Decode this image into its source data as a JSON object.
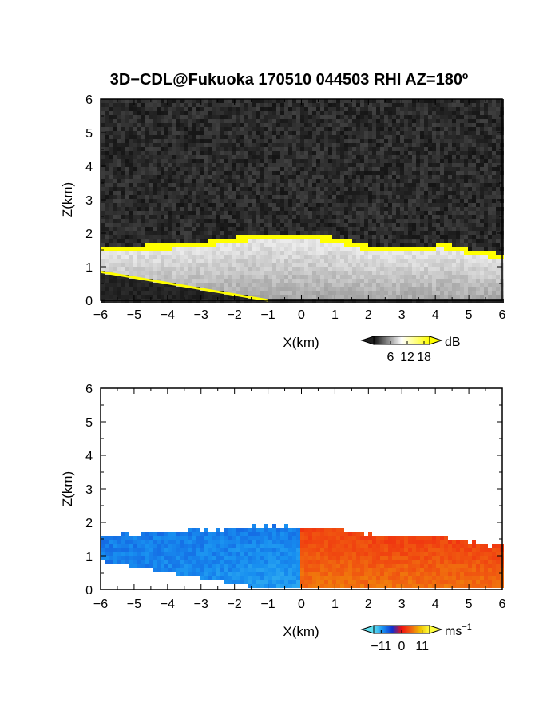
{
  "title": "3D−CDL@Fukuoka 170510 044503 RHI AZ=180º",
  "chart_data": [
    {
      "type": "heatmap",
      "quantity": "backscatter",
      "xlabel": "X(km)",
      "ylabel": "Z(km)",
      "xlim": [
        -6,
        6
      ],
      "ylim": [
        0,
        6
      ],
      "xticks": [
        "−6",
        "−5",
        "−4",
        "−3",
        "−2",
        "−1",
        "0",
        "1",
        "2",
        "3",
        "4",
        "5",
        "6"
      ],
      "yticks": [
        "0",
        "1",
        "2",
        "3",
        "4",
        "5",
        "6"
      ],
      "colorbar": {
        "unit": "dB",
        "ticks": [
          "6",
          "12",
          "18"
        ],
        "tick_values": [
          6,
          12,
          18
        ],
        "range": [
          0,
          20
        ],
        "colors": [
          "#101010",
          "#ffffff",
          "#ffff00"
        ]
      },
      "layer_top_km": [
        [
          -6,
          1.55
        ],
        [
          -5,
          1.6
        ],
        [
          -4,
          1.65
        ],
        [
          -3,
          1.7
        ],
        [
          -2,
          1.85
        ],
        [
          -1,
          1.95
        ],
        [
          0,
          1.95
        ],
        [
          1,
          1.85
        ],
        [
          2,
          1.6
        ],
        [
          3,
          1.55
        ],
        [
          4,
          1.55
        ],
        [
          4.1,
          1.7
        ],
        [
          5,
          1.5
        ],
        [
          6,
          1.35
        ]
      ],
      "ground_line_km": [
        [
          -6,
          0.85
        ],
        [
          -1,
          0.0
        ]
      ],
      "noise_color": "#303030",
      "grid": false
    },
    {
      "type": "heatmap",
      "quantity": "radial velocity",
      "xlabel": "X(km)",
      "ylabel": "Z(km)",
      "xlim": [
        -6,
        6
      ],
      "ylim": [
        0,
        6
      ],
      "xticks": [
        "−6",
        "−5",
        "−4",
        "−3",
        "−2",
        "−1",
        "0",
        "1",
        "2",
        "3",
        "4",
        "5",
        "6"
      ],
      "yticks": [
        "0",
        "1",
        "2",
        "3",
        "4",
        "5",
        "6"
      ],
      "colorbar": {
        "unit": "ms",
        "unit_sup": "−1",
        "ticks": [
          "−11",
          "0",
          "11"
        ],
        "tick_values": [
          -11,
          0,
          11
        ],
        "range": [
          -15,
          15
        ],
        "colors": [
          "#5ee0f0",
          "#1890f0",
          "#1030d0",
          "#f01010",
          "#f06010",
          "#f0c000",
          "#ffff40"
        ]
      },
      "layer_top_km": [
        [
          -6,
          1.65
        ],
        [
          -5,
          1.7
        ],
        [
          -4,
          1.75
        ],
        [
          -3,
          1.8
        ],
        [
          -2,
          1.85
        ],
        [
          -1,
          1.95
        ],
        [
          0,
          1.9
        ],
        [
          1,
          1.85
        ],
        [
          2,
          1.7
        ],
        [
          3,
          1.6
        ],
        [
          4,
          1.6
        ],
        [
          5,
          1.45
        ],
        [
          6,
          1.3
        ]
      ],
      "ground_line_km": [
        [
          -6,
          0.85
        ],
        [
          -1,
          0.0
        ]
      ],
      "left_velocity_ms": -9,
      "right_velocity_ms": 6,
      "grid": false
    }
  ]
}
